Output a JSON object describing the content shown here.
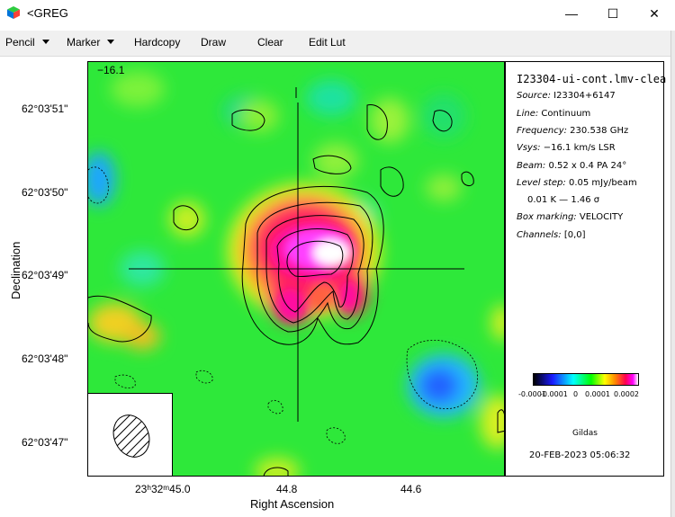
{
  "window": {
    "title": "<GREG",
    "controls": {
      "minimize": "—",
      "maximize": "☐",
      "close": "✕"
    }
  },
  "menu": {
    "pencil": "Pencil",
    "marker": "Marker",
    "hardcopy": "Hardcopy",
    "draw": "Draw",
    "clear": "Clear",
    "edit_lut": "Edit Lut"
  },
  "plot": {
    "corner_value": "−16.1",
    "y_ticks": [
      "62°03'51\"",
      "62°03'50\"",
      "62°03'49\"",
      "62°03'48\"",
      "62°03'47\""
    ],
    "x_ticks": [
      "23ʰ32ᵐ45.0",
      "44.8",
      "44.6"
    ],
    "x_label": "Right Ascension",
    "y_label": "Declination"
  },
  "info": {
    "title": "I23304-ui-cont.lmv-clea",
    "source_label": "Source:",
    "source_value": "I23304+6147",
    "line_label": "Line:",
    "line_value": "Continuum",
    "freq_label": "Frequency:",
    "freq_value": "230.538 GHz",
    "vsys_label": "Vsys:",
    "vsys_value": "−16.1 km/s LSR",
    "beam_label": "Beam:",
    "beam_value": "0.52 x 0.4 PA 24°",
    "level_label": "Level step:",
    "level_value": "0.05 mJy/beam",
    "level_k": "0.01 K   —   1.46 σ",
    "box_label": "Box marking:",
    "box_value": "VELOCITY",
    "channels_label": "Channels:",
    "channels_value": "[0,0]",
    "lut_ticks": [
      "-0.0001",
      "-0.0001",
      "0",
      "0.0001",
      "0.0002"
    ],
    "software": "Gildas",
    "timestamp": "20-FEB-2023 05:06:32"
  },
  "colors": {
    "background_map": "#33ee33",
    "peak": "#ff00cc"
  }
}
